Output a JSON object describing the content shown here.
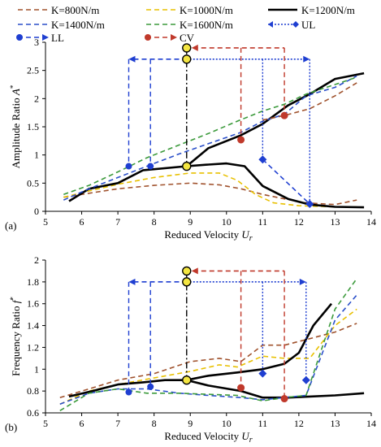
{
  "legend": {
    "items": [
      {
        "label": "K=800N/m",
        "color": "#a0522d",
        "dash": "6,4",
        "width": 1.6
      },
      {
        "label": "K=1000N/m",
        "color": "#e8c000",
        "dash": "6,4",
        "width": 1.6
      },
      {
        "label": "K=1200N/m",
        "color": "#000000",
        "dash": "",
        "width": 2.6
      },
      {
        "label": "K=1400N/m",
        "color": "#2a4fc9",
        "dash": "6,4",
        "width": 1.6
      },
      {
        "label": "K=1600N/m",
        "color": "#3b9a3b",
        "dash": "6,4",
        "width": 1.6
      },
      {
        "label": "UL",
        "color": "#1f3fd1",
        "dash": "2,2",
        "width": 1.6,
        "marker": "diamond"
      },
      {
        "label": "LL",
        "color": "#1f3fd1",
        "dash": "6,4",
        "width": 1.6,
        "marker": "circle"
      },
      {
        "label": "CV",
        "color": "#c0392b",
        "dash": "6,4",
        "width": 1.6,
        "marker": "circle"
      }
    ]
  },
  "chart_data": [
    {
      "type": "line",
      "panel_label": "(a)",
      "xlabel": "Reduced Velocity",
      "xlabel_sub": "r",
      "xlabel_var": "U",
      "ylabel": "Amplitude Ratio",
      "ylabel_var": "A*",
      "xlim": [
        5,
        14
      ],
      "ylim": [
        0,
        3
      ],
      "xticks": [
        "5",
        "6",
        "7",
        "8",
        "9",
        "10",
        "11",
        "12",
        "13",
        "14"
      ],
      "yticks": [
        "0",
        "0.5",
        "1",
        "1.5",
        "2",
        "2.5",
        "3"
      ],
      "series": [
        {
          "name": "K=800N/m",
          "x": [
            5.5,
            6.2,
            7,
            8,
            9,
            9.8,
            10.4,
            11,
            11.6,
            12.2,
            13,
            13.6
          ],
          "y": [
            0.25,
            0.32,
            0.4,
            0.46,
            0.5,
            0.47,
            0.4,
            0.3,
            0.22,
            0.15,
            0.12,
            0.2
          ]
        },
        {
          "name": "K=1000N/m",
          "x": [
            5.5,
            6.2,
            7,
            8,
            9,
            9.8,
            10.3,
            10.8,
            11.3,
            12,
            13,
            13.6
          ],
          "y": [
            0.25,
            0.36,
            0.48,
            0.6,
            0.68,
            0.68,
            0.55,
            0.3,
            0.15,
            0.1,
            0.08,
            0.08
          ]
        },
        {
          "name": "K=1200N/m",
          "x": [
            5.65,
            6.2,
            7,
            7.7,
            8.9,
            9.5,
            10,
            10.5,
            11,
            11.7,
            12.3,
            13,
            13.8
          ],
          "y": [
            0.18,
            0.4,
            0.5,
            0.73,
            0.8,
            0.83,
            0.85,
            0.8,
            0.45,
            0.22,
            0.12,
            0.08,
            0.07
          ]
        },
        {
          "name": "K=1200N/m upper",
          "x": [
            8.9,
            9.5,
            10.4,
            11,
            11.7,
            12.3,
            13,
            13.8
          ],
          "y": [
            0.8,
            1.12,
            1.35,
            1.55,
            1.88,
            2.08,
            2.35,
            2.45
          ]
        },
        {
          "name": "K=1400N/m",
          "x": [
            5.5,
            6.2,
            7,
            7.8,
            8.7,
            9.5,
            10.4,
            11,
            11.6,
            12.2,
            13,
            13.6
          ],
          "y": [
            0.2,
            0.4,
            0.6,
            0.8,
            1.02,
            1.2,
            1.4,
            1.6,
            1.72,
            2.05,
            2.2,
            2.4
          ]
        },
        {
          "name": "K=1600N/m",
          "x": [
            5.5,
            6.2,
            7,
            7.8,
            8.7,
            9.5,
            10.3,
            11,
            11.6,
            12.2,
            13,
            13.6
          ],
          "y": [
            0.3,
            0.46,
            0.7,
            0.95,
            1.18,
            1.38,
            1.6,
            1.78,
            1.9,
            2.08,
            2.25,
            2.38
          ]
        },
        {
          "name": "K=800N/m upper",
          "x": [
            11,
            11.6,
            12.3,
            13,
            13.6
          ],
          "y": [
            1.62,
            1.7,
            1.82,
            2.05,
            2.28
          ]
        }
      ],
      "annotations": {
        "arrow_y": 2.7,
        "arrow_x_left": 7.3,
        "arrow_x_right": 12.3,
        "arrow_x_mid": 8.9,
        "cv_arrow_y": 2.9,
        "cv_x_left": 8.9,
        "cv_x_right": 11.6,
        "ll_points": [
          {
            "x": 7.3,
            "y": 0.8
          },
          {
            "x": 7.9,
            "y": 0.8
          }
        ],
        "ul_points": [
          {
            "x": 11.0,
            "y": 0.92
          },
          {
            "x": 12.3,
            "y": 0.13
          }
        ],
        "cv_points": [
          {
            "x": 10.4,
            "y": 1.27
          },
          {
            "x": 11.6,
            "y": 1.7
          }
        ],
        "blue_dashed_drop": [
          {
            "x": 7.3,
            "y0": 2.7,
            "y1": 0.8
          },
          {
            "x": 7.9,
            "y0": 2.7,
            "y1": 0.8
          }
        ],
        "blue_dotted_drop": [
          {
            "x": 11.0,
            "y0": 2.7,
            "y1": 0.92
          },
          {
            "x": 12.3,
            "y0": 2.7,
            "y1": 0.13
          }
        ],
        "red_dashed_drop": [
          {
            "x": 10.4,
            "y0": 2.9,
            "y1": 1.27
          },
          {
            "x": 11.6,
            "y0": 2.9,
            "y1": 1.7
          }
        ],
        "center_line": {
          "x": 8.9,
          "y0": 2.9,
          "y1": 0.8
        },
        "yellow_points": [
          {
            "x": 8.9,
            "y": 2.9
          },
          {
            "x": 8.9,
            "y": 2.7
          },
          {
            "x": 8.9,
            "y": 0.8
          }
        ],
        "ul_dashed": [
          {
            "x": 11.0,
            "y": 0.92
          },
          {
            "x": 12.3,
            "y": 0.13
          }
        ]
      }
    },
    {
      "type": "line",
      "panel_label": "(b)",
      "xlabel": "Reduced Velocity",
      "xlabel_sub": "r",
      "xlabel_var": "U",
      "ylabel": "Frequency Ratio",
      "ylabel_var": "f*",
      "xlim": [
        5,
        14
      ],
      "ylim": [
        0.6,
        2
      ],
      "xticks": [
        "5",
        "6",
        "7",
        "8",
        "9",
        "10",
        "11",
        "12",
        "13",
        "14"
      ],
      "yticks": [
        "0.6",
        "0.8",
        "1",
        "1.2",
        "1.4",
        "1.6",
        "1.8",
        "2"
      ],
      "series": [
        {
          "name": "K=800N/m",
          "x": [
            5.4,
            6.2,
            7,
            8,
            9,
            9.8,
            10.4,
            11,
            11.6,
            12.3,
            13,
            13.6
          ],
          "y": [
            0.74,
            0.82,
            0.9,
            0.96,
            1.07,
            1.1,
            1.07,
            1.22,
            1.22,
            1.28,
            1.34,
            1.42
          ]
        },
        {
          "name": "K=1000N/m",
          "x": [
            5.4,
            6.2,
            7,
            8,
            9,
            9.8,
            10.3,
            11,
            11.6,
            12.3,
            13,
            13.6
          ],
          "y": [
            0.68,
            0.8,
            0.86,
            0.92,
            0.98,
            1.04,
            1.02,
            1.12,
            1.1,
            1.1,
            1.4,
            1.55
          ]
        },
        {
          "name": "K=1200N/m",
          "x": [
            5.65,
            6.3,
            7,
            7.7,
            8.3,
            8.9,
            9.5,
            10.3,
            11,
            11.6,
            12,
            12.4,
            12.9
          ],
          "y": [
            0.75,
            0.8,
            0.86,
            0.88,
            0.9,
            0.9,
            0.94,
            0.97,
            1.0,
            1.05,
            1.15,
            1.4,
            1.6
          ]
        },
        {
          "name": "K=1200N/m lower",
          "x": [
            8.9,
            9.5,
            10.4,
            11,
            11.7,
            12.3,
            13,
            13.8
          ],
          "y": [
            0.9,
            0.85,
            0.8,
            0.74,
            0.74,
            0.75,
            0.76,
            0.78
          ]
        },
        {
          "name": "K=1400N/m",
          "x": [
            5.4,
            6.2,
            7,
            7.8,
            8.7,
            9.5,
            10.4,
            11,
            11.6,
            12.2,
            13,
            13.6
          ],
          "y": [
            0.68,
            0.78,
            0.82,
            0.82,
            0.78,
            0.76,
            0.74,
            0.72,
            0.74,
            0.76,
            1.45,
            1.68
          ]
        },
        {
          "name": "K=1600N/m",
          "x": [
            5.4,
            6.2,
            7,
            7.8,
            8.7,
            9.5,
            10.3,
            11,
            11.6,
            12.2,
            13,
            13.6
          ],
          "y": [
            0.62,
            0.78,
            0.82,
            0.78,
            0.78,
            0.77,
            0.76,
            0.71,
            0.74,
            0.76,
            1.55,
            1.83
          ]
        }
      ],
      "annotations": {
        "arrow_y": 1.8,
        "arrow_x_left": 7.3,
        "arrow_x_right": 12.2,
        "arrow_x_mid": 8.9,
        "cv_arrow_y": 1.9,
        "cv_x_left": 8.9,
        "cv_x_right": 11.6,
        "ll_points": [
          {
            "x": 7.3,
            "y": 0.79
          },
          {
            "x": 7.9,
            "y": 0.84
          }
        ],
        "ul_points": [
          {
            "x": 11.0,
            "y": 0.96
          },
          {
            "x": 12.2,
            "y": 0.9
          }
        ],
        "cv_points": [
          {
            "x": 10.4,
            "y": 0.83
          },
          {
            "x": 11.6,
            "y": 0.73
          }
        ],
        "blue_dashed_drop": [
          {
            "x": 7.3,
            "y0": 1.8,
            "y1": 0.79
          },
          {
            "x": 7.9,
            "y0": 1.8,
            "y1": 0.84
          }
        ],
        "blue_dotted_drop": [
          {
            "x": 11.0,
            "y0": 1.8,
            "y1": 0.96
          },
          {
            "x": 12.2,
            "y0": 1.8,
            "y1": 0.9
          }
        ],
        "red_dashed_drop": [
          {
            "x": 10.4,
            "y0": 1.9,
            "y1": 0.83
          },
          {
            "x": 11.6,
            "y0": 1.9,
            "y1": 0.73
          }
        ],
        "center_line": {
          "x": 8.9,
          "y0": 1.9,
          "y1": 0.9
        },
        "yellow_points": [
          {
            "x": 8.9,
            "y": 1.9
          },
          {
            "x": 8.9,
            "y": 1.8
          },
          {
            "x": 8.9,
            "y": 0.9
          }
        ],
        "ul_dashed": []
      }
    }
  ]
}
